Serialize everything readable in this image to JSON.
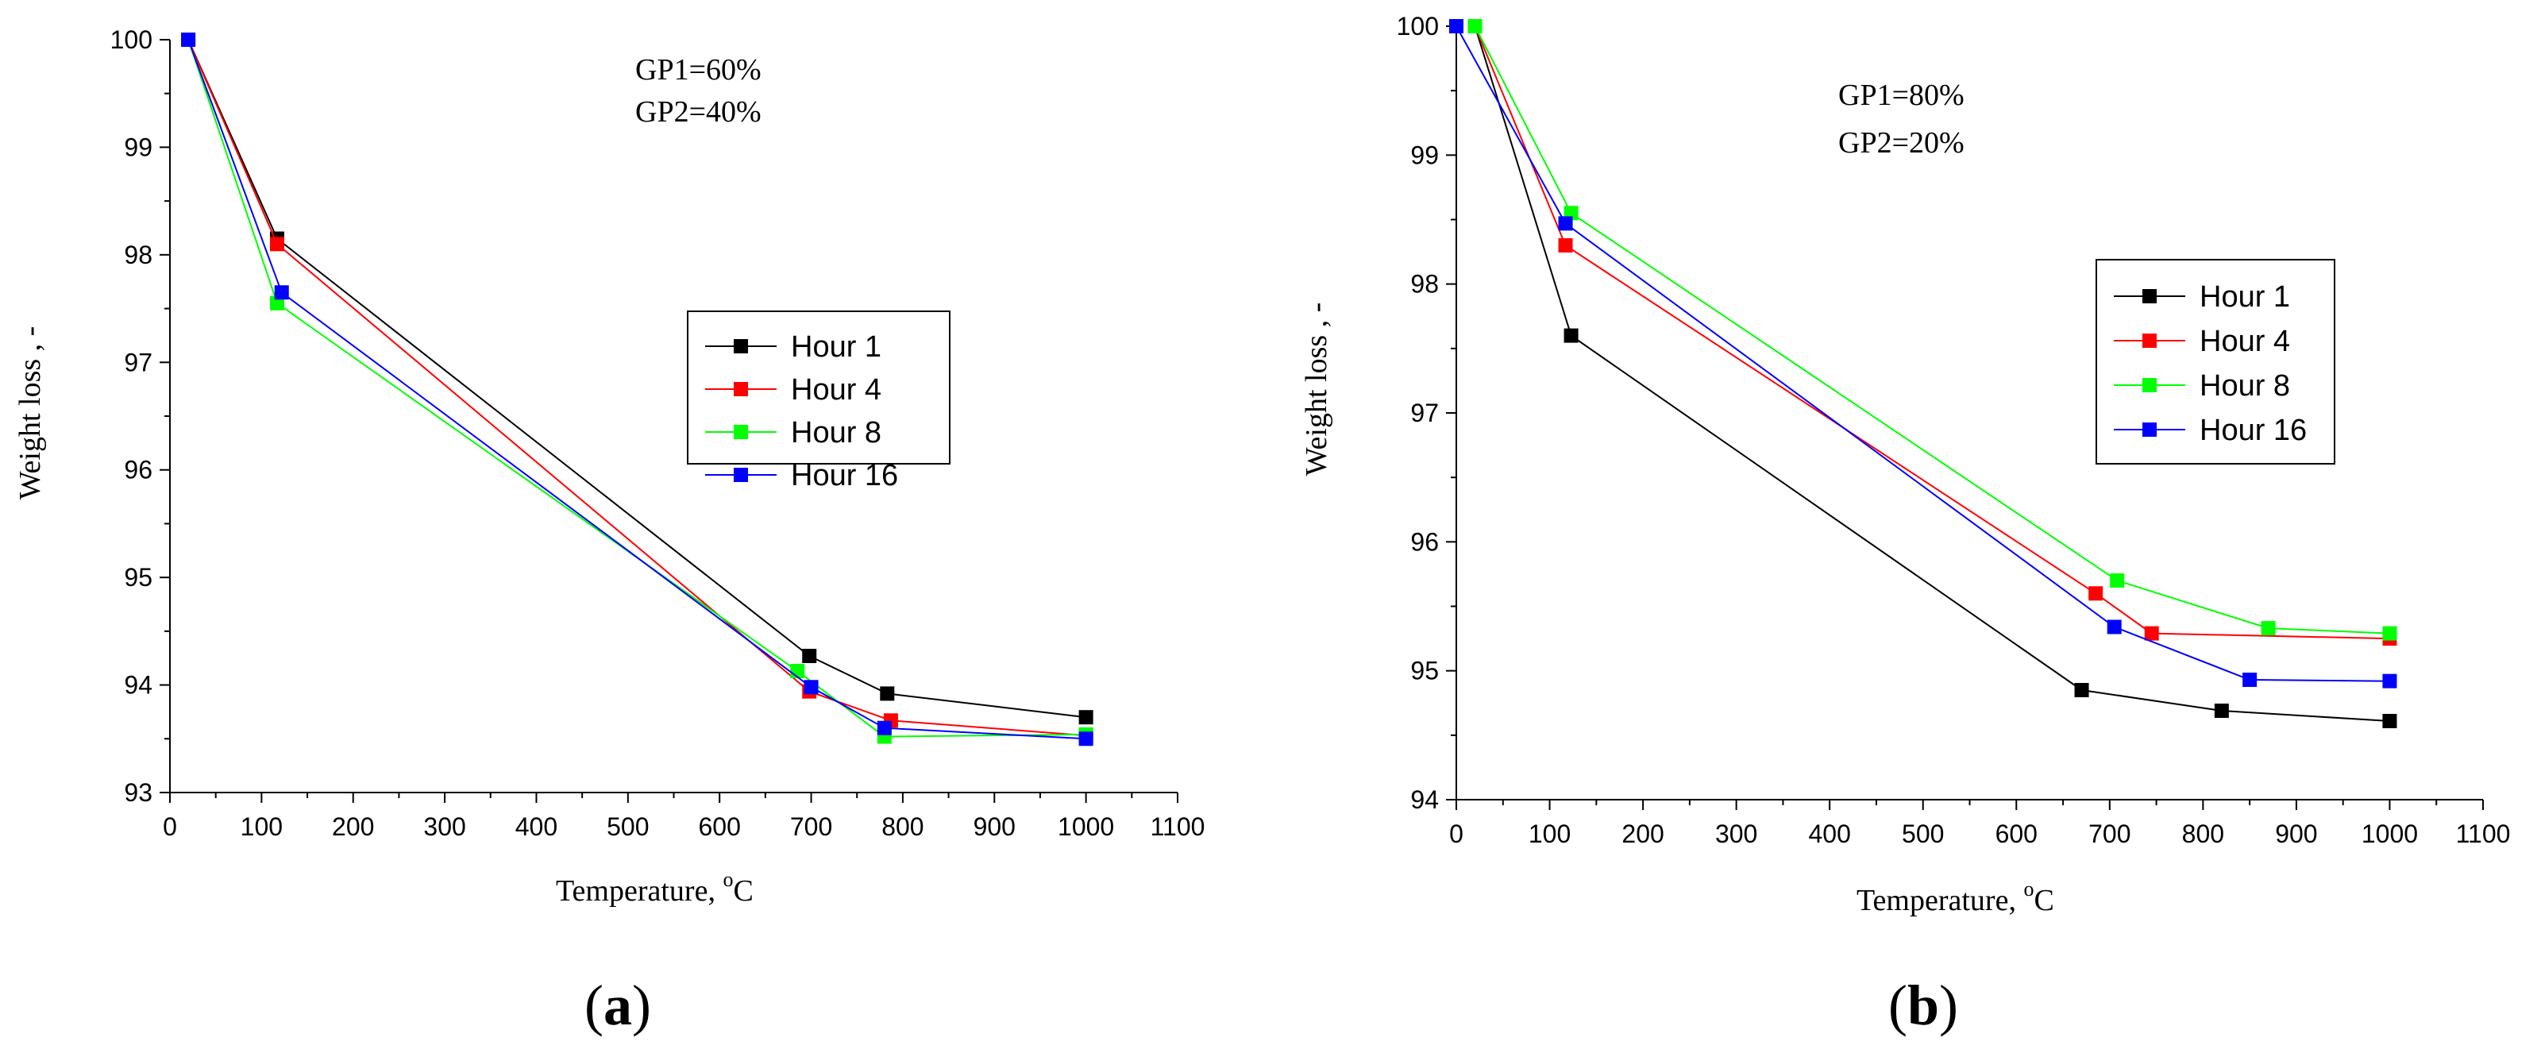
{
  "colors": {
    "Hour 1": "#000000",
    "Hour 4": "#ff0000",
    "Hour 8": "#00ff00",
    "Hour 16": "#0000ff"
  },
  "chart_data": [
    {
      "type": "line",
      "panel_label": {
        "open": "(",
        "letter": "a",
        "close": ")"
      },
      "annotations": [
        "GP1=60%",
        "GP2=40%"
      ],
      "xlabel": {
        "text": "Temperature, ",
        "sup": "o",
        "unit": "C"
      },
      "ylabel": "Weight loss , -",
      "xlim": [
        0,
        1100
      ],
      "ylim": [
        93,
        100
      ],
      "xticks": [
        0,
        100,
        200,
        300,
        400,
        500,
        600,
        700,
        800,
        900,
        1000,
        1100
      ],
      "yticks": [
        93,
        94,
        95,
        96,
        97,
        98,
        99,
        100
      ],
      "legend": {
        "position": "center-right"
      },
      "series": [
        {
          "name": "Hour 1",
          "x": [
            20,
            117,
            698,
            783,
            1000
          ],
          "y": [
            100,
            98.15,
            94.27,
            93.92,
            93.7
          ]
        },
        {
          "name": "Hour 4",
          "x": [
            20,
            117,
            698,
            787,
            1000
          ],
          "y": [
            100,
            98.1,
            93.94,
            93.67,
            93.53
          ]
        },
        {
          "name": "Hour 8",
          "x": [
            20,
            117,
            685,
            780,
            1000
          ],
          "y": [
            100,
            97.55,
            94.13,
            93.52,
            93.54
          ]
        },
        {
          "name": "Hour 16",
          "x": [
            20,
            122,
            700,
            780,
            1000
          ],
          "y": [
            100,
            97.65,
            93.98,
            93.6,
            93.5
          ]
        }
      ]
    },
    {
      "type": "line",
      "panel_label": {
        "open": "(",
        "letter": "b",
        "close": ")"
      },
      "annotations": [
        "GP1=80%",
        "GP2=20%"
      ],
      "xlabel": {
        "text": "Temperature, ",
        "sup": "o",
        "unit": "C"
      },
      "ylabel": "Weight loss , -",
      "xlim": [
        0,
        1100
      ],
      "ylim": [
        94,
        100
      ],
      "xticks": [
        0,
        100,
        200,
        300,
        400,
        500,
        600,
        700,
        800,
        900,
        1000,
        1100
      ],
      "yticks": [
        94,
        95,
        96,
        97,
        98,
        99,
        100
      ],
      "legend": {
        "position": "top-right"
      },
      "series": [
        {
          "name": "Hour 1",
          "x": [
            20,
            123,
            670,
            820,
            1000
          ],
          "y": [
            100,
            97.6,
            94.85,
            94.69,
            94.61
          ]
        },
        {
          "name": "Hour 4",
          "x": [
            20,
            117,
            685,
            745,
            1000
          ],
          "y": [
            100,
            98.3,
            95.6,
            95.29,
            95.25
          ]
        },
        {
          "name": "Hour 8",
          "x": [
            20,
            123,
            708,
            870,
            1000
          ],
          "y": [
            100,
            98.55,
            95.7,
            95.33,
            95.29
          ]
        },
        {
          "name": "Hour 16",
          "x": [
            0,
            117,
            705,
            850,
            1000
          ],
          "y": [
            100,
            98.47,
            95.34,
            94.93,
            94.92
          ]
        }
      ]
    }
  ]
}
